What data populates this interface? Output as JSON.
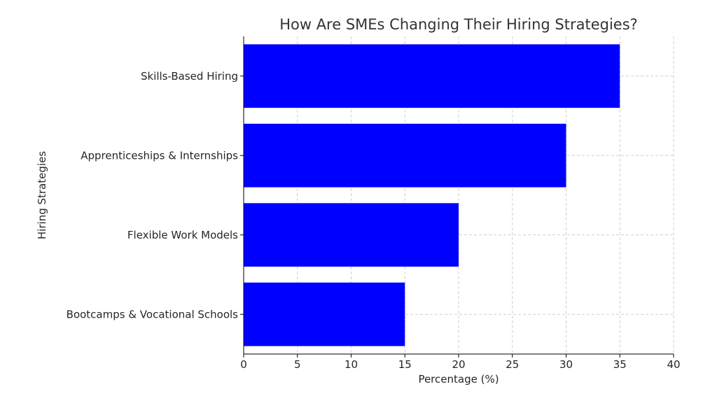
{
  "chart_data": {
    "type": "bar",
    "orientation": "horizontal",
    "title": "How Are SMEs Changing Their Hiring Strategies?",
    "xlabel": "Percentage (%)",
    "ylabel": "Hiring Strategies",
    "categories": [
      "Skills-Based Hiring",
      "Apprenticeships & Internships",
      "Flexible Work Models",
      "Bootcamps & Vocational Schools"
    ],
    "values": [
      35,
      30,
      20,
      15
    ],
    "xlim": [
      0,
      40
    ],
    "xticks": [
      0,
      5,
      10,
      15,
      20,
      25,
      30,
      35,
      40
    ],
    "grid": true,
    "bar_color": "#0000ff"
  }
}
